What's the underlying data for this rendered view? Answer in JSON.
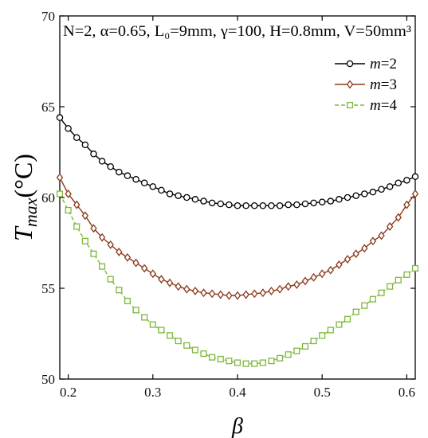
{
  "chart_data": {
    "type": "line",
    "annotation": "N=2, α=0.65, L₀=9mm, γ=100, H=0.8mm, V=50mm³",
    "xlabel": "β",
    "ylabel": "T_max(°C)",
    "xlim": [
      0.19,
      0.61
    ],
    "ylim": [
      50,
      70
    ],
    "xticks": [
      0.2,
      0.3,
      0.4,
      0.5,
      0.6
    ],
    "yticks": [
      50,
      55,
      60,
      65,
      70
    ],
    "grid": false,
    "legend_position": "top-right",
    "series": [
      {
        "name": "m=2",
        "color": "#000000",
        "marker": "circle",
        "style": "solid",
        "x": [
          0.19,
          0.2,
          0.21,
          0.22,
          0.23,
          0.24,
          0.25,
          0.26,
          0.27,
          0.28,
          0.29,
          0.3,
          0.31,
          0.32,
          0.33,
          0.34,
          0.35,
          0.36,
          0.37,
          0.38,
          0.39,
          0.4,
          0.41,
          0.42,
          0.43,
          0.44,
          0.45,
          0.46,
          0.47,
          0.48,
          0.49,
          0.5,
          0.51,
          0.52,
          0.53,
          0.54,
          0.55,
          0.56,
          0.57,
          0.58,
          0.59,
          0.6,
          0.61
        ],
        "y": [
          64.4,
          63.8,
          63.3,
          62.9,
          62.4,
          62.0,
          61.7,
          61.4,
          61.2,
          61.0,
          60.8,
          60.6,
          60.4,
          60.2,
          60.1,
          60.0,
          59.9,
          59.8,
          59.7,
          59.65,
          59.6,
          59.55,
          59.55,
          59.55,
          59.55,
          59.55,
          59.55,
          59.6,
          59.6,
          59.65,
          59.7,
          59.75,
          59.8,
          59.9,
          60.0,
          60.1,
          60.2,
          60.3,
          60.45,
          60.6,
          60.8,
          60.95,
          61.15
        ]
      },
      {
        "name": "m=3",
        "color": "#8b3a1a",
        "marker": "diamond",
        "style": "solid",
        "x": [
          0.19,
          0.2,
          0.21,
          0.22,
          0.23,
          0.24,
          0.25,
          0.26,
          0.27,
          0.28,
          0.29,
          0.3,
          0.31,
          0.32,
          0.33,
          0.34,
          0.35,
          0.36,
          0.37,
          0.38,
          0.39,
          0.4,
          0.41,
          0.42,
          0.43,
          0.44,
          0.45,
          0.46,
          0.47,
          0.48,
          0.49,
          0.5,
          0.51,
          0.52,
          0.53,
          0.54,
          0.55,
          0.56,
          0.57,
          0.58,
          0.59,
          0.6,
          0.61
        ],
        "y": [
          61.1,
          60.2,
          59.6,
          59.0,
          58.3,
          57.8,
          57.4,
          57.0,
          56.7,
          56.4,
          56.1,
          55.8,
          55.5,
          55.3,
          55.1,
          54.95,
          54.85,
          54.75,
          54.7,
          54.65,
          54.6,
          54.6,
          54.65,
          54.7,
          54.75,
          54.85,
          54.95,
          55.1,
          55.2,
          55.4,
          55.6,
          55.8,
          56.0,
          56.3,
          56.6,
          56.9,
          57.2,
          57.6,
          57.9,
          58.4,
          58.9,
          59.6,
          60.2
        ]
      },
      {
        "name": "m=4",
        "color": "#7db83a",
        "marker": "square",
        "style": "dashed",
        "x": [
          0.19,
          0.2,
          0.21,
          0.22,
          0.23,
          0.24,
          0.25,
          0.26,
          0.27,
          0.28,
          0.29,
          0.3,
          0.31,
          0.32,
          0.33,
          0.34,
          0.35,
          0.36,
          0.37,
          0.38,
          0.39,
          0.4,
          0.41,
          0.42,
          0.43,
          0.44,
          0.45,
          0.46,
          0.47,
          0.48,
          0.49,
          0.5,
          0.51,
          0.52,
          0.53,
          0.54,
          0.55,
          0.56,
          0.57,
          0.58,
          0.59,
          0.6,
          0.61
        ],
        "y": [
          60.2,
          59.3,
          58.4,
          57.6,
          56.9,
          56.2,
          55.5,
          54.9,
          54.3,
          53.8,
          53.4,
          53.0,
          52.7,
          52.4,
          52.1,
          51.85,
          51.6,
          51.4,
          51.2,
          51.1,
          51.0,
          50.9,
          50.85,
          50.85,
          50.9,
          51.0,
          51.15,
          51.35,
          51.55,
          51.8,
          52.1,
          52.4,
          52.7,
          53.0,
          53.3,
          53.7,
          54.05,
          54.4,
          54.75,
          55.1,
          55.45,
          55.75,
          56.1
        ]
      }
    ]
  }
}
